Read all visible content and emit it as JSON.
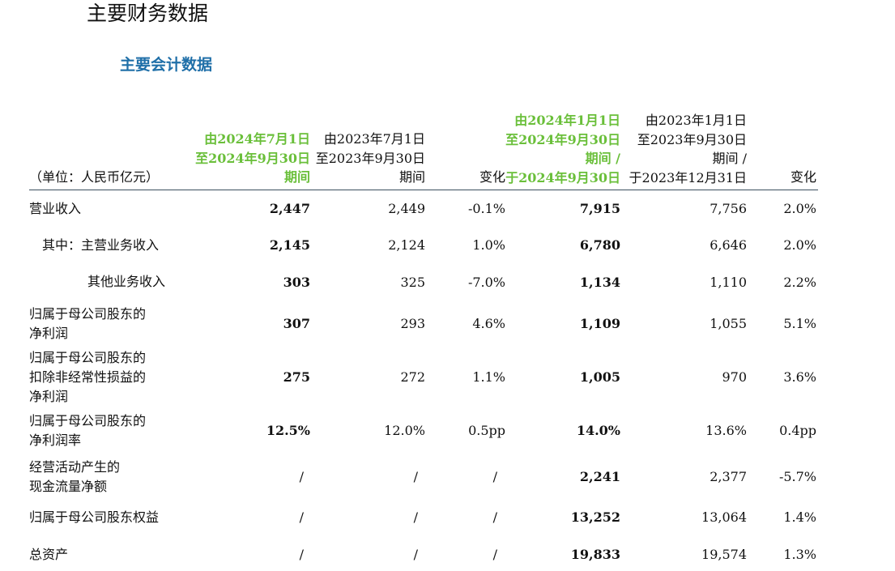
{
  "page_title": "主要财务数据",
  "section_title": "主要会计数据",
  "unit_label": "（单位：人民币亿元）",
  "headers": {
    "q3_2024": [
      "由2024年7月1日",
      "至2024年9月30日",
      "期间"
    ],
    "q3_2023": [
      "由2023年7月1日",
      "至2023年9月30日",
      "期间"
    ],
    "q_change": [
      "变化"
    ],
    "ytd_2024": [
      "由2024年1月1日",
      "至2024年9月30日",
      "期间 /",
      "于2024年9月30日"
    ],
    "ytd_2023": [
      "由2023年1月1日",
      "至2023年9月30日",
      "期间 /",
      "于2023年12月31日"
    ],
    "ytd_change": [
      "变化"
    ]
  },
  "rows": [
    {
      "label": [
        "营业收入"
      ],
      "q3_2024": "2,447",
      "q3_2023": "2,449",
      "q_change": "-0.1%",
      "ytd_2024": "7,915",
      "ytd_2023": "7,756",
      "ytd_change": "2.0%"
    },
    {
      "label": [
        "其中：主营业务收入"
      ],
      "q3_2024": "2,145",
      "q3_2023": "2,124",
      "q_change": "1.0%",
      "ytd_2024": "6,780",
      "ytd_2023": "6,646",
      "ytd_change": "2.0%"
    },
    {
      "label": [
        "其他业务收入"
      ],
      "q3_2024": "303",
      "q3_2023": "325",
      "q_change": "-7.0%",
      "ytd_2024": "1,134",
      "ytd_2023": "1,110",
      "ytd_change": "2.2%"
    },
    {
      "label": [
        "归属于母公司股东的",
        "净利润"
      ],
      "q3_2024": "307",
      "q3_2023": "293",
      "q_change": "4.6%",
      "ytd_2024": "1,109",
      "ytd_2023": "1,055",
      "ytd_change": "5.1%"
    },
    {
      "label": [
        "归属于母公司股东的",
        "扣除非经常性损益的",
        "净利润"
      ],
      "q3_2024": "275",
      "q3_2023": "272",
      "q_change": "1.1%",
      "ytd_2024": "1,005",
      "ytd_2023": "970",
      "ytd_change": "3.6%"
    },
    {
      "label": [
        "归属于母公司股东的",
        "净利润率"
      ],
      "q3_2024": "12.5%",
      "q3_2023": "12.0%",
      "q_change": "0.5pp",
      "ytd_2024": "14.0%",
      "ytd_2023": "13.6%",
      "ytd_change": "0.4pp"
    },
    {
      "label": [
        "经营活动产生的",
        "现金流量净额"
      ],
      "q3_2024": "/",
      "q3_2023": "/",
      "q_change": "/",
      "ytd_2024": "2,241",
      "ytd_2023": "2,377",
      "ytd_change": "-5.7%"
    },
    {
      "label": [
        "归属于母公司股东权益"
      ],
      "q3_2024": "/",
      "q3_2023": "/",
      "q_change": "/",
      "ytd_2024": "13,252",
      "ytd_2023": "13,064",
      "ytd_change": "1.4%"
    },
    {
      "label": [
        "总资产"
      ],
      "q3_2024": "/",
      "q3_2023": "/",
      "q_change": "/",
      "ytd_2024": "19,833",
      "ytd_2023": "19,574",
      "ytd_change": "1.3%"
    }
  ],
  "colors": {
    "highlight_header": "#6abf3a",
    "section_title": "#1f6fa8",
    "rule": "#3b4f5e"
  }
}
